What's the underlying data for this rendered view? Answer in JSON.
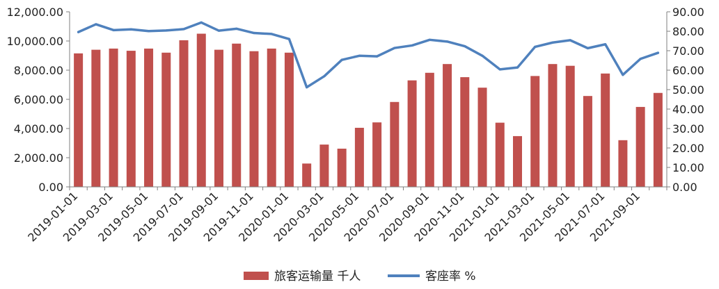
{
  "chart_data": {
    "type": "bar",
    "title": "",
    "xlabel": "",
    "ylabel": "",
    "y_left": {
      "lim": [
        0,
        12000
      ],
      "ticks": [
        0,
        2000,
        4000,
        6000,
        8000,
        10000,
        12000
      ],
      "tick_labels": [
        "0.00",
        "2,000.00",
        "4,000.00",
        "6,000.00",
        "8,000.00",
        "10,000.00",
        "12,000.00"
      ]
    },
    "y_right": {
      "lim": [
        0,
        90
      ],
      "ticks": [
        0,
        10,
        20,
        30,
        40,
        50,
        60,
        70,
        80,
        90
      ],
      "tick_labels": [
        "0.00",
        "10.00",
        "20.00",
        "30.00",
        "40.00",
        "50.00",
        "60.00",
        "70.00",
        "80.00",
        "90.00"
      ]
    },
    "x": [
      "2019-01-01",
      "2019-02-01",
      "2019-03-01",
      "2019-04-01",
      "2019-05-01",
      "2019-06-01",
      "2019-07-01",
      "2019-08-01",
      "2019-09-01",
      "2019-10-01",
      "2019-11-01",
      "2019-12-01",
      "2020-01-01",
      "2020-02-01",
      "2020-03-01",
      "2020-04-01",
      "2020-05-01",
      "2020-06-01",
      "2020-07-01",
      "2020-08-01",
      "2020-09-01",
      "2020-10-01",
      "2020-11-01",
      "2020-12-01",
      "2021-01-01",
      "2021-02-01",
      "2021-03-01",
      "2021-04-01",
      "2021-05-01",
      "2021-06-01",
      "2021-07-01",
      "2021-08-01",
      "2021-09-01",
      "2021-10-01"
    ],
    "x_tick_labels": [
      "2019-01-01",
      "",
      "2019-03-01",
      "",
      "2019-05-01",
      "",
      "2019-07-01",
      "",
      "2019-09-01",
      "",
      "2019-11-01",
      "",
      "2020-01-01",
      "",
      "2020-03-01",
      "",
      "2020-05-01",
      "",
      "2020-07-01",
      "",
      "2020-09-01",
      "",
      "2020-11-01",
      "",
      "2021-01-01",
      "",
      "2021-03-01",
      "",
      "2021-05-01",
      "",
      "2021-07-01",
      "",
      "2021-09-01",
      ""
    ],
    "series": [
      {
        "name": "旅客运输量 千人",
        "type": "bar",
        "axis": "left",
        "color": "#c0504d",
        "values": [
          9150,
          9400,
          9480,
          9330,
          9480,
          9200,
          10050,
          10500,
          9400,
          9820,
          9300,
          9480,
          9200,
          1600,
          2900,
          2620,
          4050,
          4420,
          5820,
          7300,
          7820,
          8420,
          7520,
          6800,
          4400,
          3480,
          7600,
          8420,
          8300,
          6230,
          7770,
          3200,
          5480,
          6440
        ]
      },
      {
        "name": "客座率 %",
        "type": "line",
        "axis": "right",
        "color": "#4f81bd",
        "values": [
          79.6,
          83.6,
          80.6,
          81.0,
          80.1,
          80.4,
          81.1,
          84.5,
          80.3,
          81.3,
          79.1,
          78.6,
          76.0,
          51.2,
          56.9,
          65.3,
          67.4,
          67.1,
          71.4,
          72.7,
          75.6,
          74.7,
          72.3,
          67.4,
          60.4,
          61.4,
          72.0,
          74.2,
          75.4,
          71.3,
          73.3,
          57.6,
          65.8,
          68.9
        ]
      }
    ],
    "grid": false,
    "legend": "bottom-center"
  }
}
